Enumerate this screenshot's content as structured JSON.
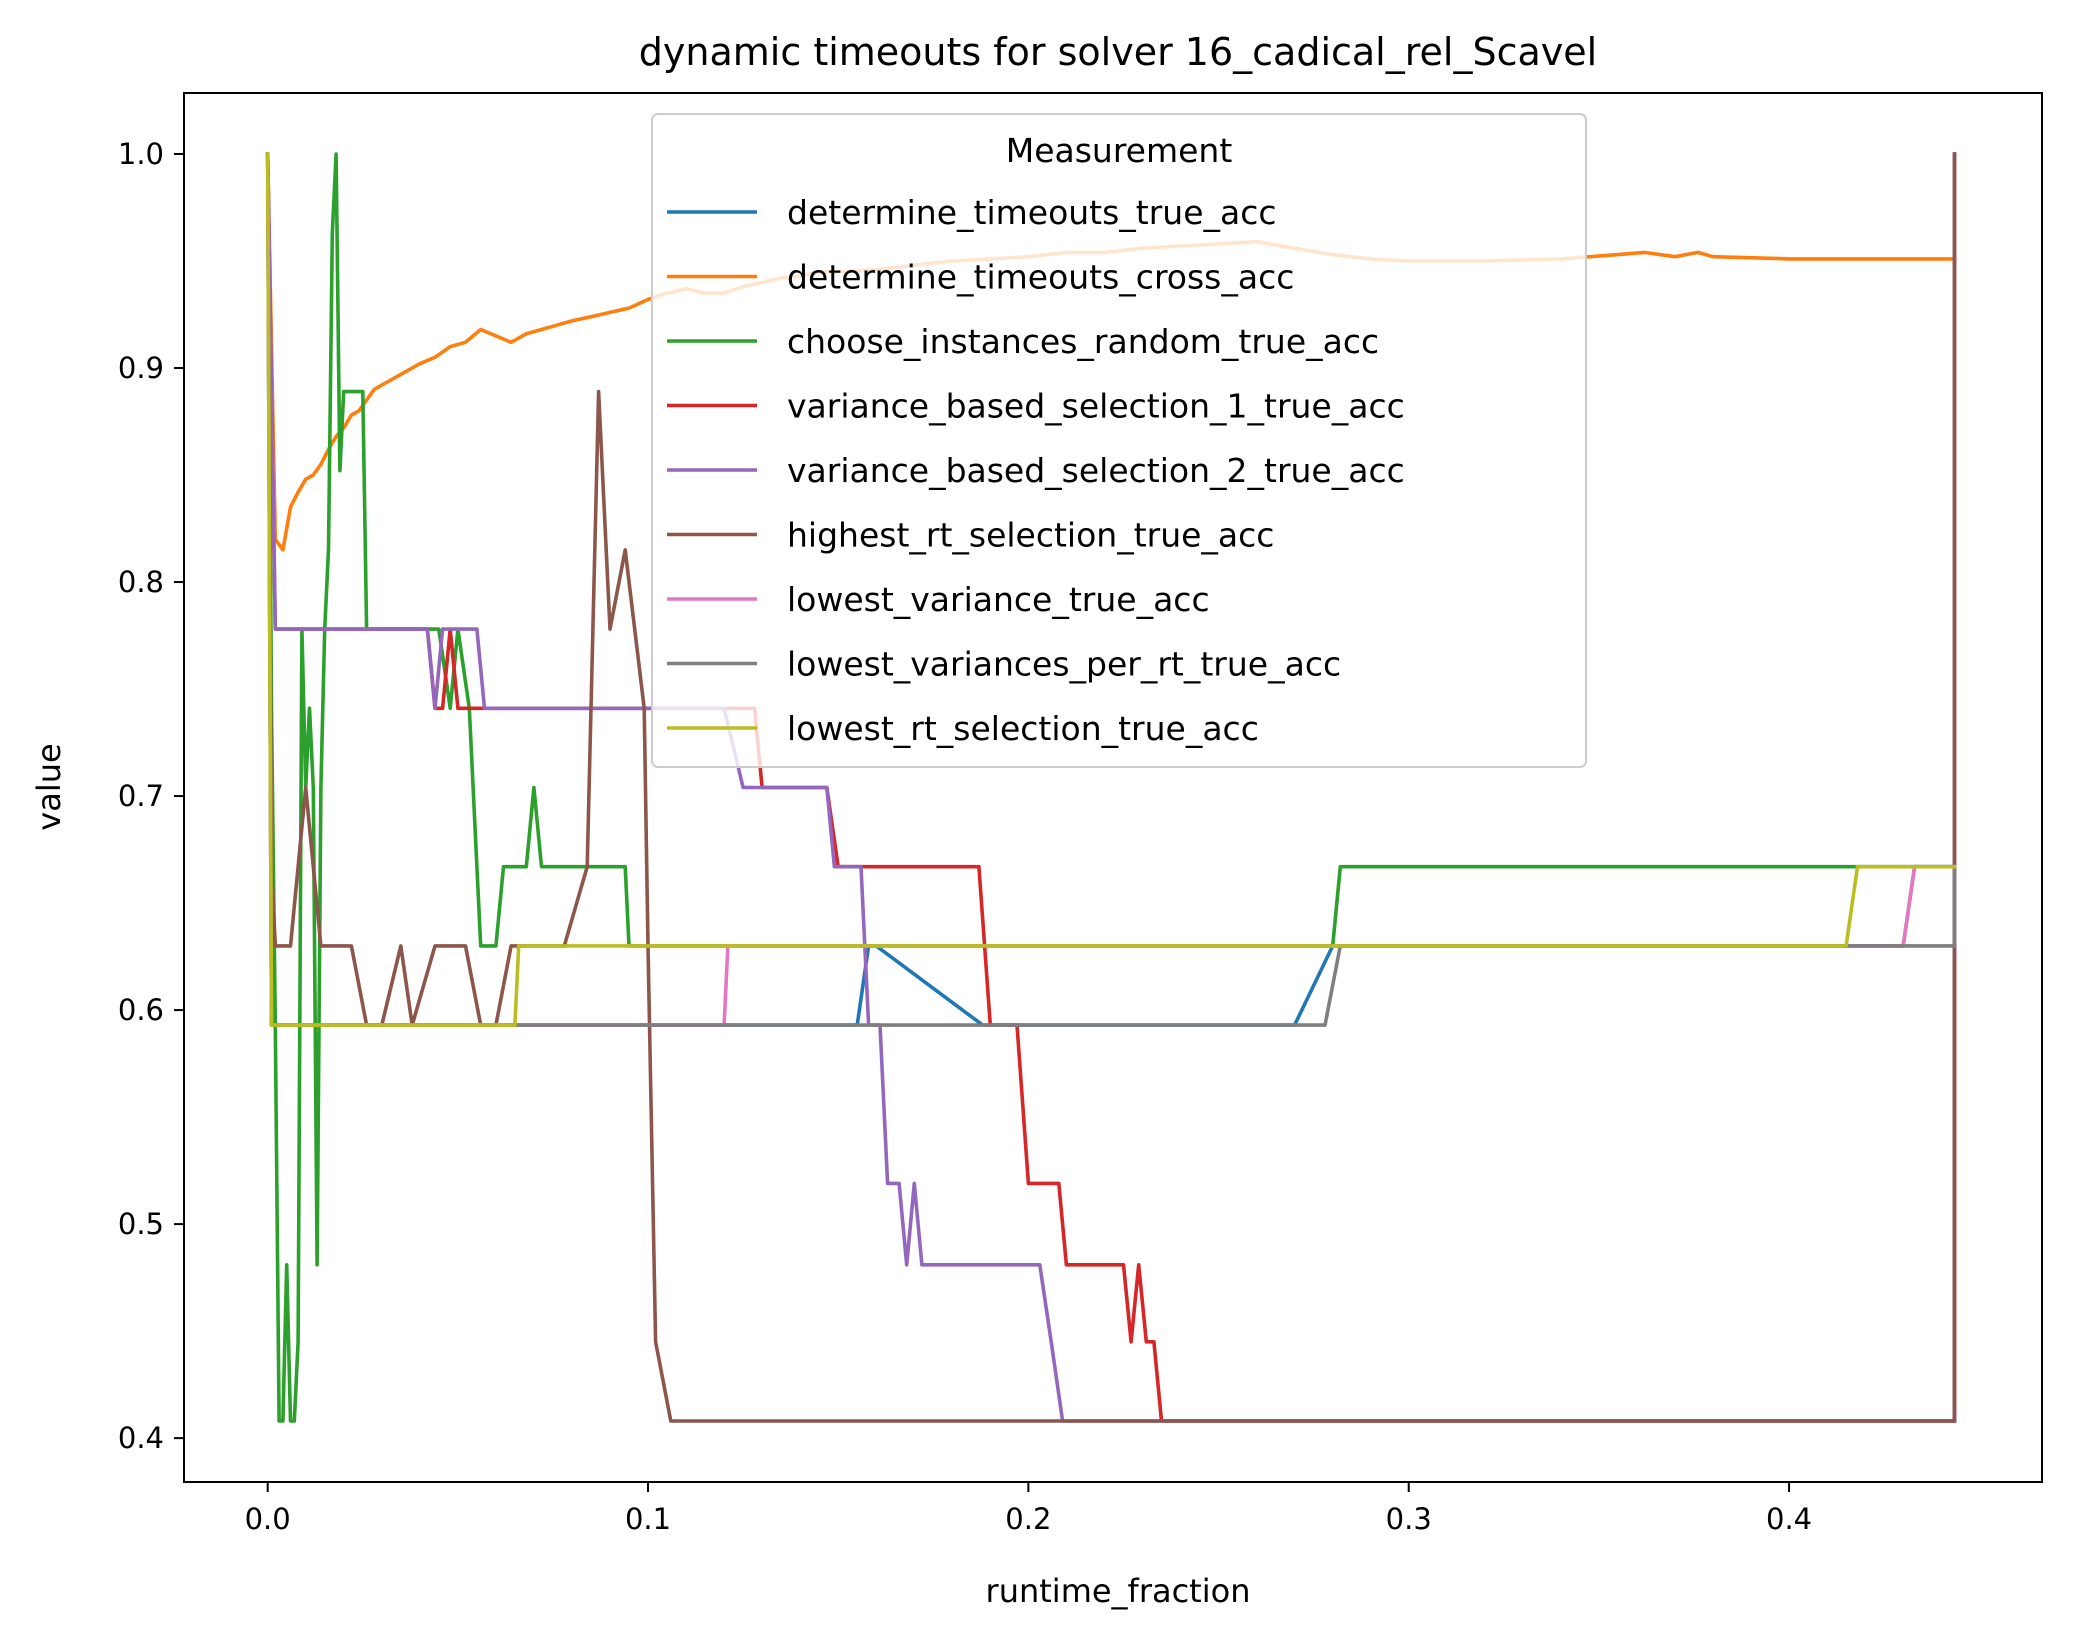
{
  "chart_data": {
    "type": "line",
    "title": "dynamic timeouts for solver 16_cadical_rel_Scavel",
    "xlabel": "runtime_fraction",
    "ylabel": "value",
    "xlim": [
      -0.022,
      0.4665
    ],
    "ylim": [
      0.3795,
      1.0285
    ],
    "xticks": [
      0.0,
      0.1,
      0.2,
      0.3,
      0.4
    ],
    "xtick_labels": [
      "0.0",
      "0.1",
      "0.2",
      "0.3",
      "0.4"
    ],
    "yticks": [
      0.4,
      0.5,
      0.6,
      0.7,
      0.8,
      0.9,
      1.0
    ],
    "ytick_labels": [
      "0.4",
      "0.5",
      "0.6",
      "0.7",
      "0.8",
      "0.9",
      "1.0"
    ],
    "grid": false,
    "legend": {
      "title": "Measurement",
      "placement": "upper center"
    },
    "series": [
      {
        "name": "determine_timeouts_true_acc",
        "color": "#1f77b4",
        "points": [
          [
            0,
            1.0
          ],
          [
            0.001,
            0.593
          ],
          [
            0.155,
            0.593
          ],
          [
            0.158,
            0.63
          ],
          [
            0.16,
            0.63
          ],
          [
            0.188,
            0.593
          ],
          [
            0.27,
            0.593
          ],
          [
            0.28,
            0.63
          ],
          [
            0.43,
            0.63
          ],
          [
            0.433,
            0.667
          ],
          [
            0.4435,
            0.667
          ],
          [
            0.4435,
            0.408
          ]
        ]
      },
      {
        "name": "determine_timeouts_cross_acc",
        "color": "#ff7f0e",
        "points": [
          [
            0,
            1.0
          ],
          [
            0.002,
            0.82
          ],
          [
            0.004,
            0.815
          ],
          [
            0.006,
            0.835
          ],
          [
            0.008,
            0.842
          ],
          [
            0.01,
            0.848
          ],
          [
            0.012,
            0.85
          ],
          [
            0.014,
            0.855
          ],
          [
            0.016,
            0.862
          ],
          [
            0.018,
            0.868
          ],
          [
            0.02,
            0.872
          ],
          [
            0.022,
            0.878
          ],
          [
            0.024,
            0.88
          ],
          [
            0.026,
            0.885
          ],
          [
            0.028,
            0.89
          ],
          [
            0.03,
            0.892
          ],
          [
            0.033,
            0.895
          ],
          [
            0.036,
            0.898
          ],
          [
            0.04,
            0.902
          ],
          [
            0.044,
            0.905
          ],
          [
            0.048,
            0.91
          ],
          [
            0.052,
            0.912
          ],
          [
            0.056,
            0.918
          ],
          [
            0.06,
            0.915
          ],
          [
            0.064,
            0.912
          ],
          [
            0.068,
            0.916
          ],
          [
            0.072,
            0.918
          ],
          [
            0.076,
            0.92
          ],
          [
            0.08,
            0.922
          ],
          [
            0.085,
            0.924
          ],
          [
            0.09,
            0.926
          ],
          [
            0.095,
            0.928
          ],
          [
            0.1,
            0.932
          ],
          [
            0.105,
            0.935
          ],
          [
            0.11,
            0.937
          ],
          [
            0.115,
            0.935
          ],
          [
            0.12,
            0.935
          ],
          [
            0.125,
            0.938
          ],
          [
            0.13,
            0.94
          ],
          [
            0.135,
            0.942
          ],
          [
            0.14,
            0.943
          ],
          [
            0.145,
            0.945
          ],
          [
            0.15,
            0.945
          ],
          [
            0.16,
            0.946
          ],
          [
            0.17,
            0.948
          ],
          [
            0.18,
            0.95
          ],
          [
            0.19,
            0.951
          ],
          [
            0.2,
            0.952
          ],
          [
            0.21,
            0.954
          ],
          [
            0.22,
            0.954
          ],
          [
            0.23,
            0.956
          ],
          [
            0.24,
            0.957
          ],
          [
            0.25,
            0.958
          ],
          [
            0.26,
            0.959
          ],
          [
            0.27,
            0.956
          ],
          [
            0.28,
            0.953
          ],
          [
            0.29,
            0.951
          ],
          [
            0.3,
            0.95
          ],
          [
            0.32,
            0.95
          ],
          [
            0.34,
            0.951
          ],
          [
            0.355,
            0.953
          ],
          [
            0.362,
            0.954
          ],
          [
            0.37,
            0.952
          ],
          [
            0.376,
            0.954
          ],
          [
            0.38,
            0.952
          ],
          [
            0.4,
            0.951
          ],
          [
            0.4435,
            0.951
          ]
        ]
      },
      {
        "name": "choose_instances_random_true_acc",
        "color": "#2ca02c",
        "points": [
          [
            0,
            1.0
          ],
          [
            0.001,
            0.74
          ],
          [
            0.002,
            0.593
          ],
          [
            0.003,
            0.408
          ],
          [
            0.004,
            0.408
          ],
          [
            0.005,
            0.481
          ],
          [
            0.006,
            0.408
          ],
          [
            0.007,
            0.408
          ],
          [
            0.008,
            0.445
          ],
          [
            0.009,
            0.778
          ],
          [
            0.01,
            0.704
          ],
          [
            0.011,
            0.741
          ],
          [
            0.012,
            0.704
          ],
          [
            0.013,
            0.481
          ],
          [
            0.014,
            0.704
          ],
          [
            0.015,
            0.778
          ],
          [
            0.016,
            0.815
          ],
          [
            0.017,
            0.963
          ],
          [
            0.018,
            1.0
          ],
          [
            0.019,
            0.852
          ],
          [
            0.02,
            0.889
          ],
          [
            0.025,
            0.889
          ],
          [
            0.026,
            0.778
          ],
          [
            0.045,
            0.778
          ],
          [
            0.048,
            0.741
          ],
          [
            0.05,
            0.778
          ],
          [
            0.053,
            0.741
          ],
          [
            0.054,
            0.704
          ],
          [
            0.055,
            0.667
          ],
          [
            0.056,
            0.63
          ],
          [
            0.06,
            0.63
          ],
          [
            0.062,
            0.667
          ],
          [
            0.068,
            0.667
          ],
          [
            0.07,
            0.704
          ],
          [
            0.072,
            0.667
          ],
          [
            0.094,
            0.667
          ],
          [
            0.095,
            0.63
          ],
          [
            0.28,
            0.63
          ],
          [
            0.282,
            0.667
          ],
          [
            0.4435,
            0.667
          ],
          [
            0.4435,
            0.408
          ]
        ]
      },
      {
        "name": "variance_based_selection_1_true_acc",
        "color": "#d62728",
        "points": [
          [
            0,
            1.0
          ],
          [
            0.001,
            0.889
          ],
          [
            0.002,
            0.778
          ],
          [
            0.042,
            0.778
          ],
          [
            0.044,
            0.741
          ],
          [
            0.046,
            0.741
          ],
          [
            0.048,
            0.778
          ],
          [
            0.05,
            0.741
          ],
          [
            0.128,
            0.741
          ],
          [
            0.13,
            0.704
          ],
          [
            0.147,
            0.704
          ],
          [
            0.15,
            0.667
          ],
          [
            0.187,
            0.667
          ],
          [
            0.19,
            0.593
          ],
          [
            0.197,
            0.593
          ],
          [
            0.2,
            0.519
          ],
          [
            0.208,
            0.519
          ],
          [
            0.21,
            0.481
          ],
          [
            0.225,
            0.481
          ],
          [
            0.227,
            0.445
          ],
          [
            0.229,
            0.481
          ],
          [
            0.231,
            0.445
          ],
          [
            0.233,
            0.445
          ],
          [
            0.235,
            0.408
          ],
          [
            0.4435,
            0.408
          ],
          [
            0.4435,
            1.0
          ]
        ]
      },
      {
        "name": "variance_based_selection_2_true_acc",
        "color": "#9467bd",
        "points": [
          [
            0,
            1.0
          ],
          [
            0.001,
            0.889
          ],
          [
            0.002,
            0.778
          ],
          [
            0.042,
            0.778
          ],
          [
            0.044,
            0.741
          ],
          [
            0.046,
            0.778
          ],
          [
            0.055,
            0.778
          ],
          [
            0.057,
            0.741
          ],
          [
            0.12,
            0.741
          ],
          [
            0.125,
            0.704
          ],
          [
            0.147,
            0.704
          ],
          [
            0.149,
            0.667
          ],
          [
            0.156,
            0.667
          ],
          [
            0.158,
            0.593
          ],
          [
            0.161,
            0.593
          ],
          [
            0.163,
            0.519
          ],
          [
            0.166,
            0.519
          ],
          [
            0.168,
            0.481
          ],
          [
            0.17,
            0.519
          ],
          [
            0.172,
            0.481
          ],
          [
            0.203,
            0.481
          ],
          [
            0.206,
            0.445
          ],
          [
            0.209,
            0.408
          ],
          [
            0.4435,
            0.408
          ],
          [
            0.4435,
            1.0
          ]
        ]
      },
      {
        "name": "highest_rt_selection_true_acc",
        "color": "#8c564b",
        "points": [
          [
            0,
            1.0
          ],
          [
            0.001,
            0.667
          ],
          [
            0.002,
            0.63
          ],
          [
            0.005,
            0.63
          ],
          [
            0.006,
            0.63
          ],
          [
            0.01,
            0.704
          ],
          [
            0.014,
            0.63
          ],
          [
            0.022,
            0.63
          ],
          [
            0.026,
            0.593
          ],
          [
            0.03,
            0.593
          ],
          [
            0.035,
            0.63
          ],
          [
            0.038,
            0.593
          ],
          [
            0.044,
            0.63
          ],
          [
            0.052,
            0.63
          ],
          [
            0.056,
            0.593
          ],
          [
            0.06,
            0.593
          ],
          [
            0.064,
            0.63
          ],
          [
            0.078,
            0.63
          ],
          [
            0.084,
            0.667
          ],
          [
            0.087,
            0.889
          ],
          [
            0.09,
            0.778
          ],
          [
            0.094,
            0.815
          ],
          [
            0.099,
            0.741
          ],
          [
            0.1,
            0.63
          ],
          [
            0.102,
            0.445
          ],
          [
            0.106,
            0.408
          ],
          [
            0.4435,
            0.408
          ],
          [
            0.4435,
            1.0
          ]
        ]
      },
      {
        "name": "lowest_variance_true_acc",
        "color": "#e377c2",
        "points": [
          [
            0,
            1.0
          ],
          [
            0.001,
            0.593
          ],
          [
            0.12,
            0.593
          ],
          [
            0.121,
            0.63
          ],
          [
            0.43,
            0.63
          ],
          [
            0.433,
            0.667
          ],
          [
            0.4435,
            0.667
          ]
        ]
      },
      {
        "name": "lowest_variances_per_rt_true_acc",
        "color": "#7f7f7f",
        "points": [
          [
            0,
            1.0
          ],
          [
            0.001,
            0.593
          ],
          [
            0.278,
            0.593
          ],
          [
            0.282,
            0.63
          ],
          [
            0.4435,
            0.63
          ],
          [
            0.4435,
            0.667
          ]
        ]
      },
      {
        "name": "lowest_rt_selection_true_acc",
        "color": "#bcbd22",
        "points": [
          [
            0,
            1.0
          ],
          [
            0.001,
            0.593
          ],
          [
            0.065,
            0.593
          ],
          [
            0.066,
            0.63
          ],
          [
            0.415,
            0.63
          ],
          [
            0.418,
            0.667
          ],
          [
            0.4435,
            0.667
          ]
        ]
      }
    ]
  }
}
